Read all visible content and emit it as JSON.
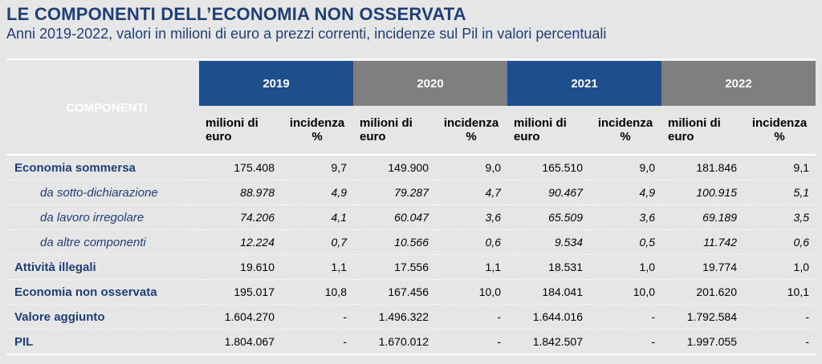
{
  "title": "LE COMPONENTI DELL’ECONOMIA NON OSSERVATA",
  "subtitle": "Anni 2019-2022, valori in milioni di euro a prezzi correnti, incidenze sul Pil in valori percentuali",
  "table": {
    "components_header": "COMPONENTI",
    "years": [
      "2019",
      "2020",
      "2021",
      "2022"
    ],
    "subheaders": {
      "value": "milioni di euro",
      "incidence_2019": "incidenza %",
      "incidence_2020": "incidenza %",
      "incidence_2021": "incidenza %",
      "incidence_2022": "incidenza %"
    },
    "rows": [
      {
        "label": "Economia sommersa",
        "values": [
          "175.408",
          "9,7",
          "149.900",
          "9,0",
          "165.510",
          "9,0",
          "181.846",
          "9,1"
        ]
      },
      {
        "label": "da sotto-dichiarazione",
        "values": [
          "88.978",
          "4,9",
          "79.287",
          "4,7",
          "90.467",
          "4,9",
          "100.915",
          "5,1"
        ]
      },
      {
        "label": "da lavoro irregolare",
        "values": [
          "74.206",
          "4,1",
          "60.047",
          "3,6",
          "65.509",
          "3,6",
          "69.189",
          "3,5"
        ]
      },
      {
        "label": "da altre componenti",
        "values": [
          "12.224",
          "0,7",
          "10.566",
          "0,6",
          "9.534",
          "0,5",
          "11.742",
          "0,6"
        ]
      },
      {
        "label": "Attività illegali",
        "values": [
          "19.610",
          "1,1",
          "17.556",
          "1,1",
          "18.531",
          "1,0",
          "19.774",
          "1,0"
        ]
      },
      {
        "label": "Economia non osservata",
        "values": [
          "195.017",
          "10,8",
          "167.456",
          "10,0",
          "184.041",
          "10,0",
          "201.620",
          "10,1"
        ]
      },
      {
        "label": "Valore aggiunto",
        "values": [
          "1.604.270",
          "-",
          "1.496.322",
          "-",
          "1.644.016",
          "-",
          "1.792.584",
          "-"
        ]
      },
      {
        "label": "PIL",
        "values": [
          "1.804.067",
          "-",
          "1.670.012",
          "-",
          "1.842.507",
          "-",
          "1.997.055",
          "-"
        ]
      }
    ]
  },
  "colors": {
    "title": "#1f3f78",
    "year_blue": "#1f4e8c",
    "year_grey": "#7f7f7f",
    "background": "#e6e6e6"
  }
}
